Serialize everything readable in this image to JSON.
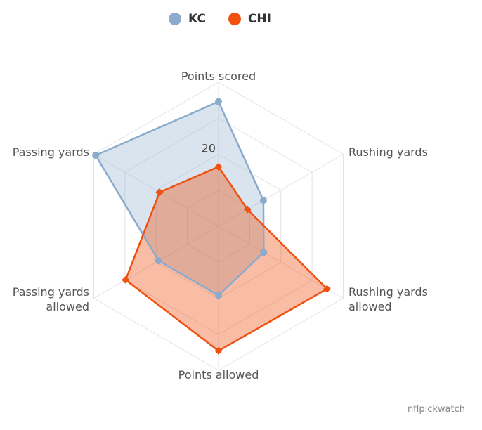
{
  "chart_data": {
    "type": "radar",
    "categories": [
      "Points scored",
      "Rushing yards",
      "Rushing yards allowed",
      "Points allowed",
      "Passing yards allowed",
      "Passing yards"
    ],
    "category_label_lines": [
      [
        "Points scored"
      ],
      [
        "Rushing yards"
      ],
      [
        "Rushing yards",
        "allowed"
      ],
      [
        "Points allowed"
      ],
      [
        "Passing yards",
        "allowed"
      ],
      [
        "Passing yards"
      ]
    ],
    "rmax": 40,
    "grid_levels": [
      10,
      20,
      30,
      40
    ],
    "tick_labels": [
      {
        "value": 20,
        "label": "20"
      }
    ],
    "series": [
      {
        "name": "KC",
        "color": "#8aabcc",
        "marker": "circle",
        "values": [
          34.6,
          14.4,
          14.5,
          19.2,
          19.2,
          39.4
        ]
      },
      {
        "name": "CHI",
        "color": "#f05010",
        "marker": "diamond",
        "values": [
          16.5,
          9.3,
          34.8,
          34.6,
          29.8,
          18.9
        ]
      }
    ],
    "legend": "top-center",
    "grid": true,
    "credit": "nflpickwatch"
  }
}
